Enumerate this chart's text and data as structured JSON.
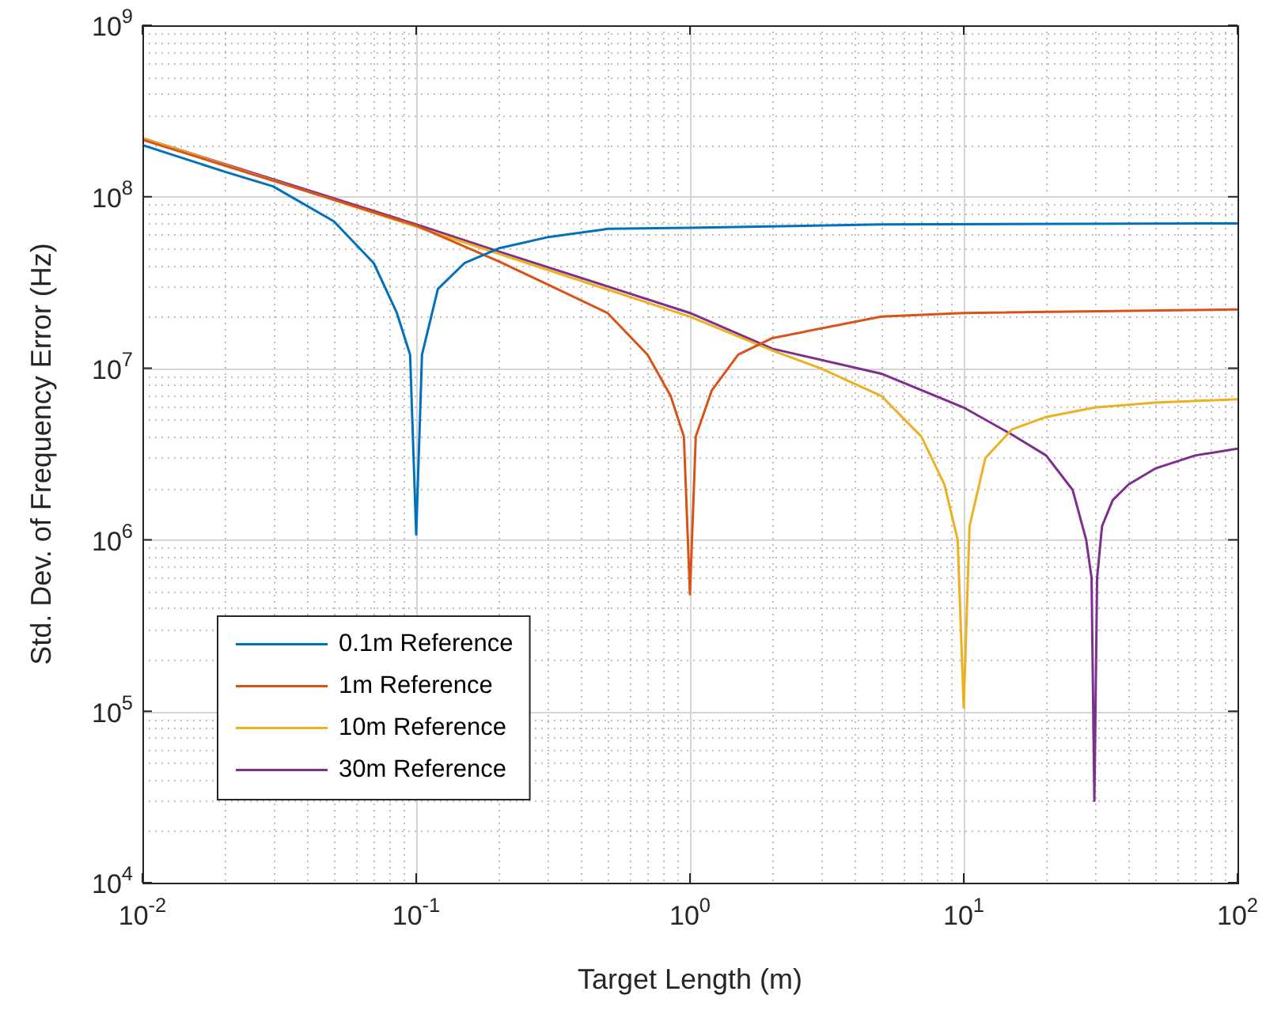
{
  "chart_data": {
    "type": "line",
    "xlabel": "Target Length (m)",
    "ylabel": "Std. Dev. of Frequency Error (Hz)",
    "log": "xy",
    "grid": true,
    "legend": "bottom left",
    "marker": "none",
    "line_style": "solid",
    "xlim": [
      0.01,
      100
    ],
    "ylim": [
      10000,
      1000000000
    ],
    "xticks": [
      {
        "value": 0.01,
        "label": "10$^{-2}$"
      },
      {
        "value": 0.1,
        "label": "10$^{-1}$"
      },
      {
        "value": 1,
        "label": "10$^{0}$"
      },
      {
        "value": 10,
        "label": "10$^{1}$"
      },
      {
        "value": 100,
        "label": "10$^{2}$"
      }
    ],
    "yticks": [
      {
        "value": 10000,
        "label": "10$^{4}$"
      },
      {
        "value": 100000,
        "label": "10$^{5}$"
      },
      {
        "value": 1000000,
        "label": "10$^{6}$"
      },
      {
        "value": 10000000,
        "label": "10$^{7}$"
      },
      {
        "value": 100000000,
        "label": "10$^{8}$"
      },
      {
        "value": 1000000000,
        "label": "10$^{9}$"
      }
    ],
    "series": [
      {
        "name": "0.1m Reference",
        "color": "#0072bd",
        "x": [
          0.01,
          0.02,
          0.03,
          0.05,
          0.07,
          0.085,
          0.095,
          0.1,
          0.105,
          0.12,
          0.15,
          0.2,
          0.3,
          0.5,
          1,
          5,
          100
        ],
        "values": [
          200000000,
          140000000,
          115000000,
          72000000,
          41000000,
          21000000,
          12000000,
          1070000,
          12000000,
          29000000,
          41000000,
          50000000,
          58000000,
          65000000,
          66000000,
          69000000,
          70000000
        ]
      },
      {
        "name": "1m Reference",
        "color": "#d95319",
        "x": [
          0.01,
          0.1,
          0.2,
          0.3,
          0.5,
          0.7,
          0.85,
          0.95,
          1,
          1.05,
          1.2,
          1.5,
          2,
          5,
          10,
          100
        ],
        "values": [
          215000000,
          68000000,
          42000000,
          31000000,
          21000000,
          12000000,
          6900000,
          4000000,
          480000,
          4000000,
          7400000,
          12000000,
          15000000,
          20000000,
          21000000,
          22000000
        ]
      },
      {
        "name": "10m Reference",
        "color": "#edb120",
        "x": [
          0.01,
          0.1,
          1,
          2,
          3,
          5,
          7,
          8.5,
          9.5,
          10,
          10.5,
          12,
          15,
          20,
          30,
          50,
          100
        ],
        "values": [
          220000000,
          67000000,
          20000000,
          12700000,
          10000000,
          6900000,
          4000000,
          2100000,
          1000000,
          105000,
          1200000,
          3000000,
          4400000,
          5200000,
          5900000,
          6300000,
          6600000
        ]
      },
      {
        "name": "30m Reference",
        "color": "#7e2f8e",
        "x": [
          0.01,
          0.02,
          0.05,
          0.1,
          0.2,
          0.5,
          1,
          2,
          5,
          10,
          15,
          20,
          25,
          28,
          29.3,
          30,
          30.7,
          32,
          35,
          40,
          50,
          70,
          100
        ],
        "values": [
          220000000,
          155000000,
          98000000,
          69000000,
          48000000,
          30000000,
          21000000,
          13000000,
          9300000,
          5900000,
          4100000,
          3100000,
          1950000,
          1000000,
          600000,
          30000,
          600000,
          1200000,
          1700000,
          2100000,
          2600000,
          3100000,
          3400000
        ]
      }
    ]
  }
}
